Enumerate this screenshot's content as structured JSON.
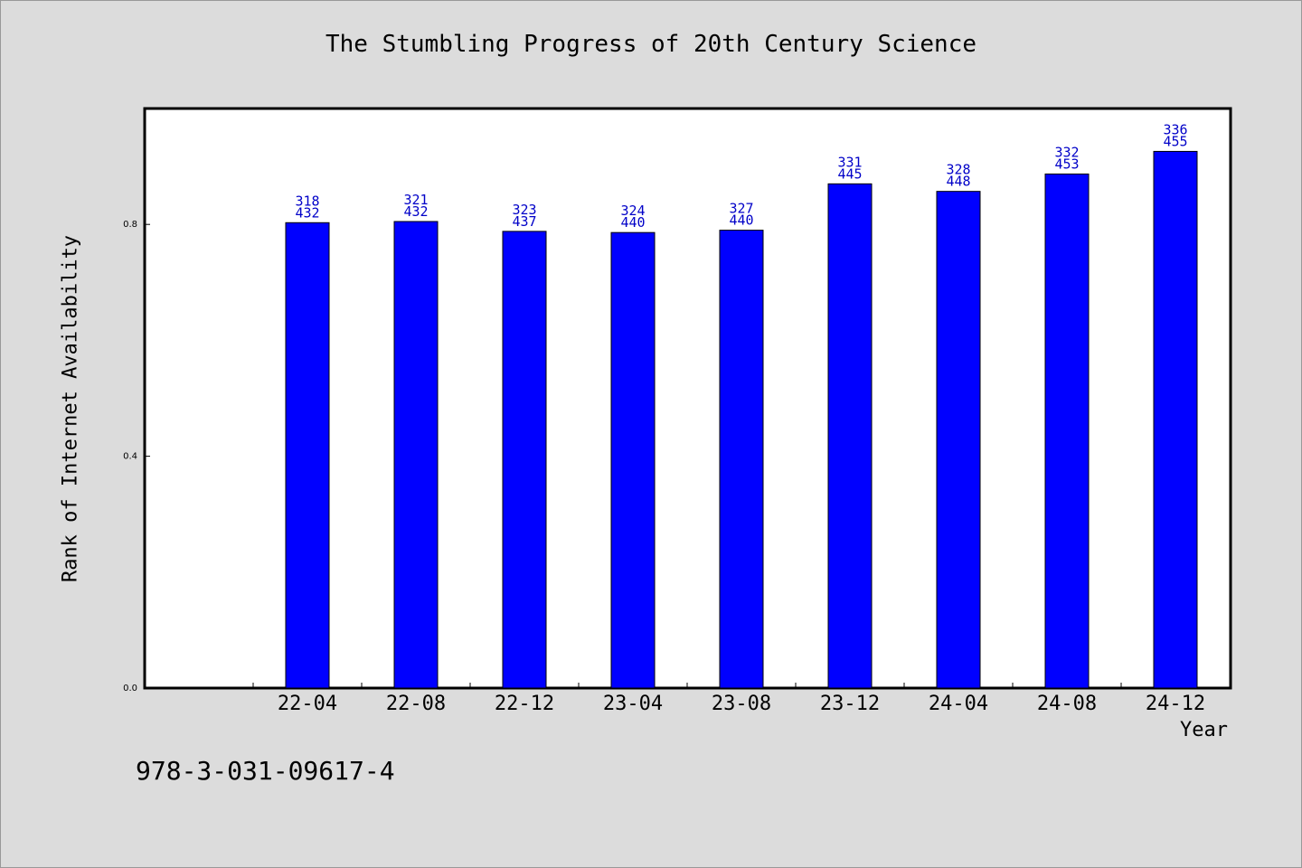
{
  "chart_data": {
    "type": "bar",
    "title": "The Stumbling Progress of 20th Century Science",
    "xlabel": "Year",
    "ylabel": "Rank of Internet Availability",
    "categories": [
      "22-04",
      "22-08",
      "22-12",
      "23-04",
      "23-08",
      "23-12",
      "24-04",
      "24-08",
      "24-12"
    ],
    "values": [
      0.803,
      0.805,
      0.788,
      0.786,
      0.79,
      0.87,
      0.857,
      0.887,
      0.926
    ],
    "label_top": [
      "318",
      "321",
      "323",
      "324",
      "327",
      "331",
      "328",
      "332",
      "336"
    ],
    "label_bottom": [
      "432",
      "432",
      "437",
      "440",
      "440",
      "445",
      "448",
      "453",
      "455"
    ],
    "yticks": [
      "0.0",
      "0.4",
      "0.8"
    ],
    "ylim": [
      0,
      1.0
    ],
    "bar_color": "#0000ff",
    "label_color": "#0000c8",
    "grid": false,
    "legend": "none"
  },
  "footer": {
    "isbn": "978-3-031-09617-4"
  }
}
